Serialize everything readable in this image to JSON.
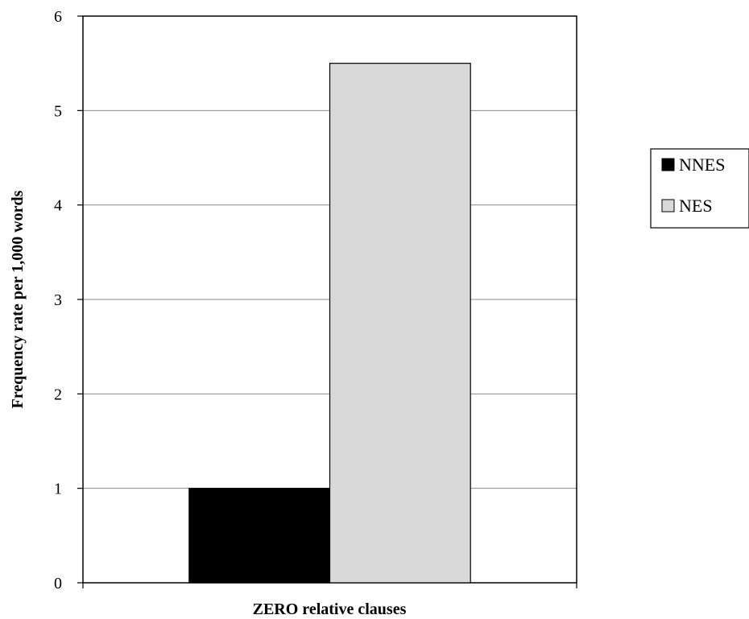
{
  "chart_data": {
    "type": "bar",
    "title": "",
    "categories": [
      "ZERO relative clauses"
    ],
    "xlabel": "ZERO relative clauses",
    "ylabel": "Frequency rate per 1,000 words",
    "ylim": [
      0,
      6
    ],
    "yticks": [
      0,
      1,
      2,
      3,
      4,
      5,
      6
    ],
    "grid": true,
    "legend_position": "right",
    "series": [
      {
        "name": "NNES",
        "values": [
          1.0
        ],
        "color": "#000000"
      },
      {
        "name": "NES",
        "values": [
          5.5
        ],
        "color": "#d9d9d9"
      }
    ]
  }
}
